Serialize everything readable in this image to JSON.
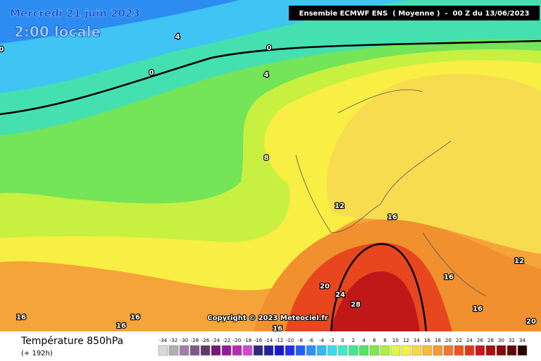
{
  "header": {
    "date": "Mercredi 21 juin 2023",
    "time": "2:00 locale",
    "model": "Ensemble ECMWF ENS  ( Moyenne )  -  00 Z du 13/06/2023"
  },
  "copyright": "Copyright © 2023 Meteociel.fr",
  "contour_labels": [
    "0",
    "4",
    "0",
    "0",
    "4",
    "8",
    "12",
    "16",
    "12",
    "16",
    "16",
    "20",
    "24",
    "28",
    "16",
    "16",
    "16",
    "20",
    "16"
  ],
  "legend": {
    "title": "Température 850hPa",
    "subtitle": "(+ 192h)",
    "scale": [
      {
        "label": -34,
        "color": "#d8d8d8"
      },
      {
        "label": -32,
        "color": "#b0b0b0"
      },
      {
        "label": -30,
        "color": "#a080a8"
      },
      {
        "label": -28,
        "color": "#805888"
      },
      {
        "label": -26,
        "color": "#603868"
      },
      {
        "label": -24,
        "color": "#781878"
      },
      {
        "label": -22,
        "color": "#981898"
      },
      {
        "label": -20,
        "color": "#b828b8"
      },
      {
        "label": -18,
        "color": "#d048d0"
      },
      {
        "label": -16,
        "color": "#302880"
      },
      {
        "label": -14,
        "color": "#2020a0"
      },
      {
        "label": -12,
        "color": "#1818c8"
      },
      {
        "label": -10,
        "color": "#2030f0"
      },
      {
        "label": -8,
        "color": "#2060f8"
      },
      {
        "label": -6,
        "color": "#2890f8"
      },
      {
        "label": -4,
        "color": "#30b8f8"
      },
      {
        "label": -2,
        "color": "#40d8f0"
      },
      {
        "label": 0,
        "color": "#40e8c8"
      },
      {
        "label": 2,
        "color": "#40e890"
      },
      {
        "label": 4,
        "color": "#50e860"
      },
      {
        "label": 6,
        "color": "#80e848"
      },
      {
        "label": 8,
        "color": "#b0f040"
      },
      {
        "label": 10,
        "color": "#e0f840"
      },
      {
        "label": 12,
        "color": "#f8f040"
      },
      {
        "label": 14,
        "color": "#f8d840"
      },
      {
        "label": 16,
        "color": "#f8b838"
      },
      {
        "label": 18,
        "color": "#f89830"
      },
      {
        "label": 20,
        "color": "#f07828"
      },
      {
        "label": 22,
        "color": "#e85820"
      },
      {
        "label": 24,
        "color": "#e03818"
      },
      {
        "label": 26,
        "color": "#c81818"
      },
      {
        "label": 28,
        "color": "#a81010"
      },
      {
        "label": 30,
        "color": "#880808"
      },
      {
        "label": 32,
        "color": "#600808"
      },
      {
        "label": 34,
        "color": "#300000"
      }
    ]
  }
}
